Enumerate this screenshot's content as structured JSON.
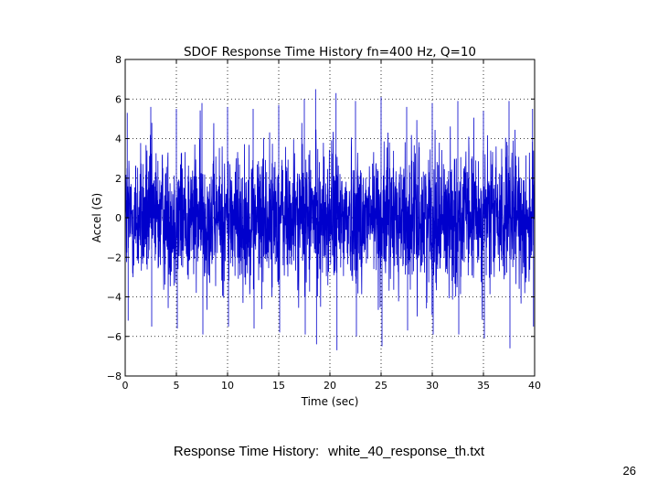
{
  "chart_data": {
    "type": "line",
    "title": "SDOF Response Time History  fn=400 Hz, Q=10",
    "xlabel": "Time (sec)",
    "ylabel": "Accel (G)",
    "xlim": [
      0,
      40
    ],
    "ylim": [
      -8,
      8
    ],
    "xticks": [
      0,
      5,
      10,
      15,
      20,
      25,
      30,
      35,
      40
    ],
    "yticks": [
      -8,
      -6,
      -4,
      -2,
      0,
      2,
      4,
      6,
      8
    ],
    "ytick_labels": [
      "−8",
      "−6",
      "−4",
      "−2",
      "0",
      "2",
      "4",
      "6",
      "8"
    ],
    "grid": true,
    "series": [
      {
        "color": "#0000cc",
        "description": "dense random (white-noise) response, roughly ±4 G band with peaks near ±6.5 G",
        "x": [
          0,
          2.5,
          5,
          7.5,
          10,
          12.5,
          15,
          17.5,
          18.6,
          20.6,
          22.5,
          25,
          27.5,
          30,
          32.5,
          35,
          37.5,
          40
        ],
        "upper_envelope": [
          5.3,
          5.6,
          5.5,
          5.8,
          5.6,
          5.5,
          5.7,
          6.0,
          6.5,
          6.3,
          5.9,
          6.1,
          5.6,
          5.8,
          5.9,
          5.4,
          5.9,
          5.5
        ],
        "lower_envelope": [
          -5.2,
          -5.5,
          -5.6,
          -5.9,
          -5.5,
          -5.6,
          -5.8,
          -5.9,
          -6.4,
          -6.7,
          -6.0,
          -6.5,
          -5.7,
          -5.9,
          -5.9,
          -6.1,
          -6.6,
          -5.5
        ]
      }
    ]
  },
  "caption": {
    "label": "Response Time History:",
    "filename": "white_40_response_th.txt"
  },
  "page_number": "26"
}
